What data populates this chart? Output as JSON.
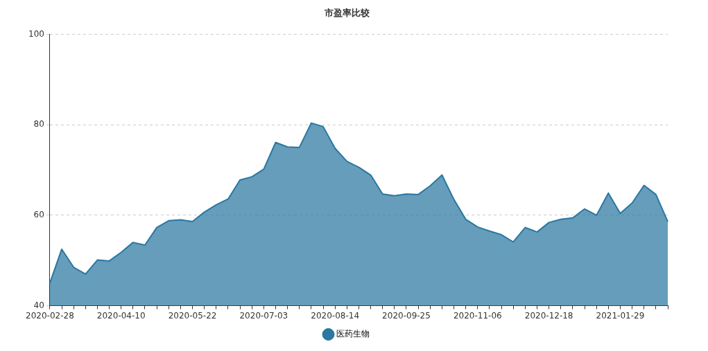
{
  "chart_data": {
    "type": "area",
    "title": "市盈率比较",
    "categories": [
      "2020-02-28",
      null,
      null,
      null,
      null,
      null,
      "2020-04-10",
      null,
      null,
      null,
      null,
      null,
      "2020-05-22",
      null,
      null,
      null,
      null,
      null,
      "2020-07-03",
      null,
      null,
      null,
      null,
      null,
      "2020-08-14",
      null,
      null,
      null,
      null,
      null,
      "2020-09-25",
      null,
      null,
      null,
      null,
      null,
      "2020-11-06",
      null,
      null,
      null,
      null,
      null,
      "2020-12-18",
      null,
      null,
      null,
      null,
      null,
      "2021-01-29",
      null,
      null,
      null,
      null
    ],
    "series": [
      {
        "name": "医药生物",
        "color": "#2a77a1",
        "values": [
          45.0,
          52.5,
          48.5,
          47.0,
          50.1,
          49.9,
          51.8,
          54.0,
          53.4,
          57.3,
          58.8,
          59.0,
          58.6,
          60.7,
          62.3,
          63.6,
          67.8,
          68.5,
          70.2,
          76.1,
          75.1,
          75.0,
          80.4,
          79.6,
          74.8,
          71.9,
          70.6,
          68.9,
          64.7,
          64.3,
          64.7,
          64.6,
          66.5,
          68.9,
          63.5,
          59.1,
          57.4,
          56.5,
          55.7,
          54.1,
          57.3,
          56.3,
          58.4,
          59.1,
          59.4,
          61.4,
          60.0,
          64.9,
          60.4,
          62.7,
          66.6,
          64.6,
          58.6
        ]
      }
    ],
    "ylim": [
      40,
      100
    ],
    "yticks": [
      40,
      60,
      80,
      100
    ],
    "grid": "y",
    "legend": "bottom"
  }
}
